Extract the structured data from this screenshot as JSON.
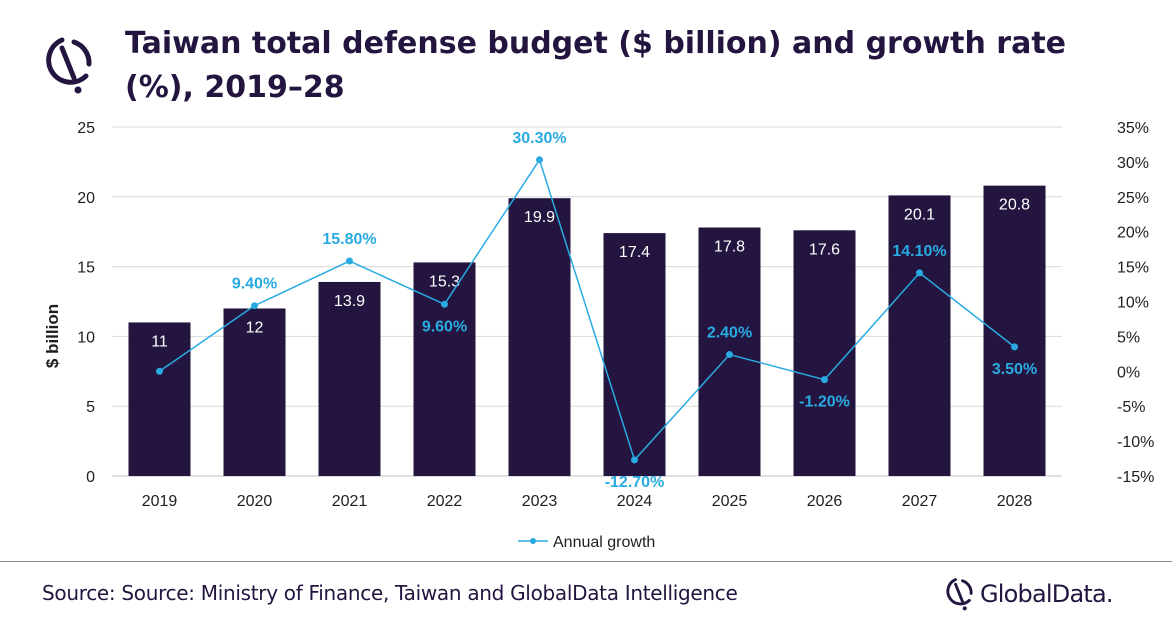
{
  "title": "Taiwan total defense budget ($ billion) and growth rate (%), 2019–28",
  "source": "Source: Source: Ministry of Finance, Taiwan and GlobalData Intelligence",
  "brand": "GlobalData.",
  "icons": {
    "title_logo": "globaldata-logo-icon",
    "brand_logo": "globaldata-logo-icon"
  },
  "colors": {
    "bar": "#23153f",
    "line": "#29abe2",
    "title": "#23153f",
    "grid": "#d9d9d9"
  },
  "chart_data": {
    "type": "bar",
    "categories": [
      "2019",
      "2020",
      "2021",
      "2022",
      "2023",
      "2024",
      "2025",
      "2026",
      "2027",
      "2028"
    ],
    "series": [
      {
        "type": "bar",
        "axis": "left",
        "values": [
          11,
          12,
          13.9,
          15.3,
          19.9,
          17.4,
          17.8,
          17.6,
          20.1,
          20.8
        ],
        "labels": [
          "11",
          "12",
          "13.9",
          "15.3",
          "19.9",
          "17.4",
          "17.8",
          "17.6",
          "20.1",
          "20.8"
        ]
      },
      {
        "type": "line",
        "axis": "right",
        "name": "Annual growth",
        "values": [
          0,
          9.4,
          15.8,
          9.6,
          30.3,
          -12.7,
          2.4,
          -1.2,
          14.1,
          3.5
        ],
        "labels": [
          "",
          "9.40%",
          "15.80%",
          "9.60%",
          "30.30%",
          "-12.70%",
          "2.40%",
          "-1.20%",
          "14.10%",
          "3.50%"
        ]
      }
    ],
    "ylabel": "$ billion",
    "ylim": [
      0,
      25
    ],
    "yticks": [
      "0",
      "5",
      "10",
      "15",
      "20",
      "25"
    ],
    "y2lim": [
      -15,
      35
    ],
    "y2ticks": [
      "-15%",
      "-10%",
      "-5%",
      "0%",
      "5%",
      "10%",
      "15%",
      "20%",
      "25%",
      "30%",
      "35%"
    ],
    "grid": true,
    "legend": "bottom"
  }
}
